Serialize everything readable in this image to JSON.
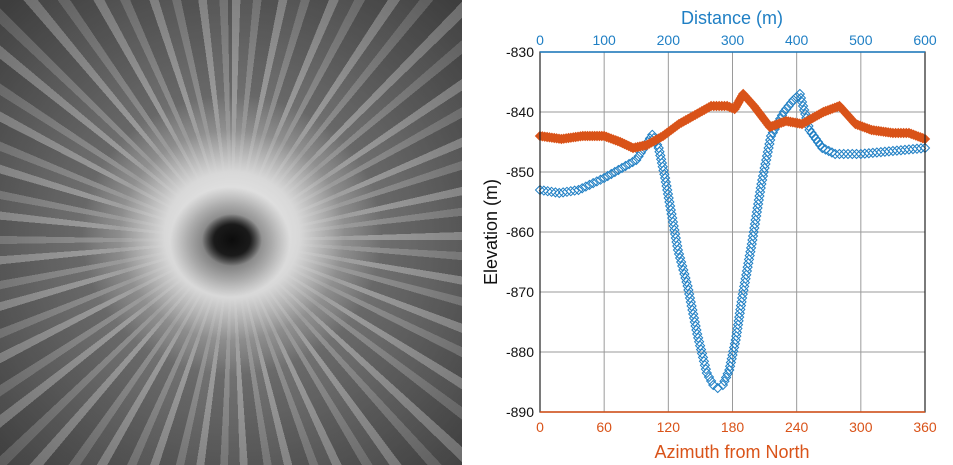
{
  "photo": {
    "description_icon": "crater-image"
  },
  "chart_data": {
    "type": "scatter",
    "ylabel": "Elevation (m)",
    "ylim": [
      -890,
      -830
    ],
    "yticks": [
      -830,
      -840,
      -850,
      -860,
      -870,
      -880,
      -890
    ],
    "grid": true,
    "x_top": {
      "label": "Distance (m)",
      "lim": [
        0,
        600
      ],
      "ticks": [
        0,
        100,
        200,
        300,
        400,
        500,
        600
      ],
      "color": "#1f7fc4"
    },
    "x_bottom": {
      "label": "Azimuth from North",
      "lim": [
        0,
        360
      ],
      "ticks": [
        0,
        60,
        120,
        180,
        240,
        300,
        360
      ],
      "color": "#d95319"
    },
    "series": [
      {
        "axis": "top",
        "marker": "diamond-open",
        "color": "#1f7fc4",
        "x": [
          0,
          30,
          60,
          100,
          150,
          175,
          185,
          195,
          205,
          215,
          230,
          245,
          260,
          270,
          277,
          285,
          295,
          305,
          315,
          330,
          345,
          360,
          380,
          395,
          405,
          420,
          440,
          460,
          480,
          500,
          550,
          600
        ],
        "y": [
          -853,
          -853.5,
          -853,
          -851,
          -848,
          -843.8,
          -846,
          -851,
          -857,
          -863,
          -869,
          -877,
          -883.5,
          -885.5,
          -886,
          -885.5,
          -883,
          -878,
          -871,
          -862,
          -852,
          -844,
          -840,
          -838,
          -837,
          -843,
          -846,
          -847,
          -847,
          -847,
          -846.5,
          -846
        ]
      },
      {
        "axis": "bottom",
        "marker": "diamond-filled",
        "color": "#d95319",
        "x": [
          0,
          20,
          40,
          60,
          75,
          87,
          100,
          115,
          130,
          145,
          160,
          175,
          182,
          190,
          200,
          215,
          230,
          245,
          265,
          280,
          295,
          310,
          330,
          345,
          360
        ],
        "y": [
          -844,
          -844.5,
          -844,
          -844,
          -845,
          -846,
          -845.5,
          -844,
          -842,
          -840.5,
          -839,
          -839,
          -839.5,
          -837,
          -839,
          -842.5,
          -841.5,
          -842,
          -840,
          -839,
          -842,
          -843,
          -843.5,
          -843.5,
          -844.5
        ]
      }
    ]
  }
}
